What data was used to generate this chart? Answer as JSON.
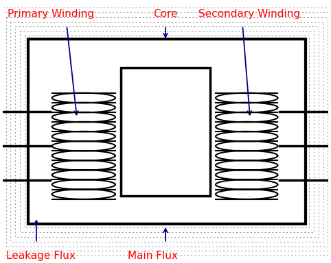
{
  "bg_color": "#ffffff",
  "core_color": "#000000",
  "winding_color": "#000000",
  "flux_color": "#999999",
  "arrow_color": "#00008B",
  "label_color": "#FF0000",
  "labels": {
    "core": "Core",
    "primary": "Primary Winding",
    "secondary": "Secondary Winding",
    "leakage": "Leakage Flux",
    "main": "Main Flux"
  },
  "figsize": [
    4.82,
    3.84
  ],
  "dpi": 100
}
